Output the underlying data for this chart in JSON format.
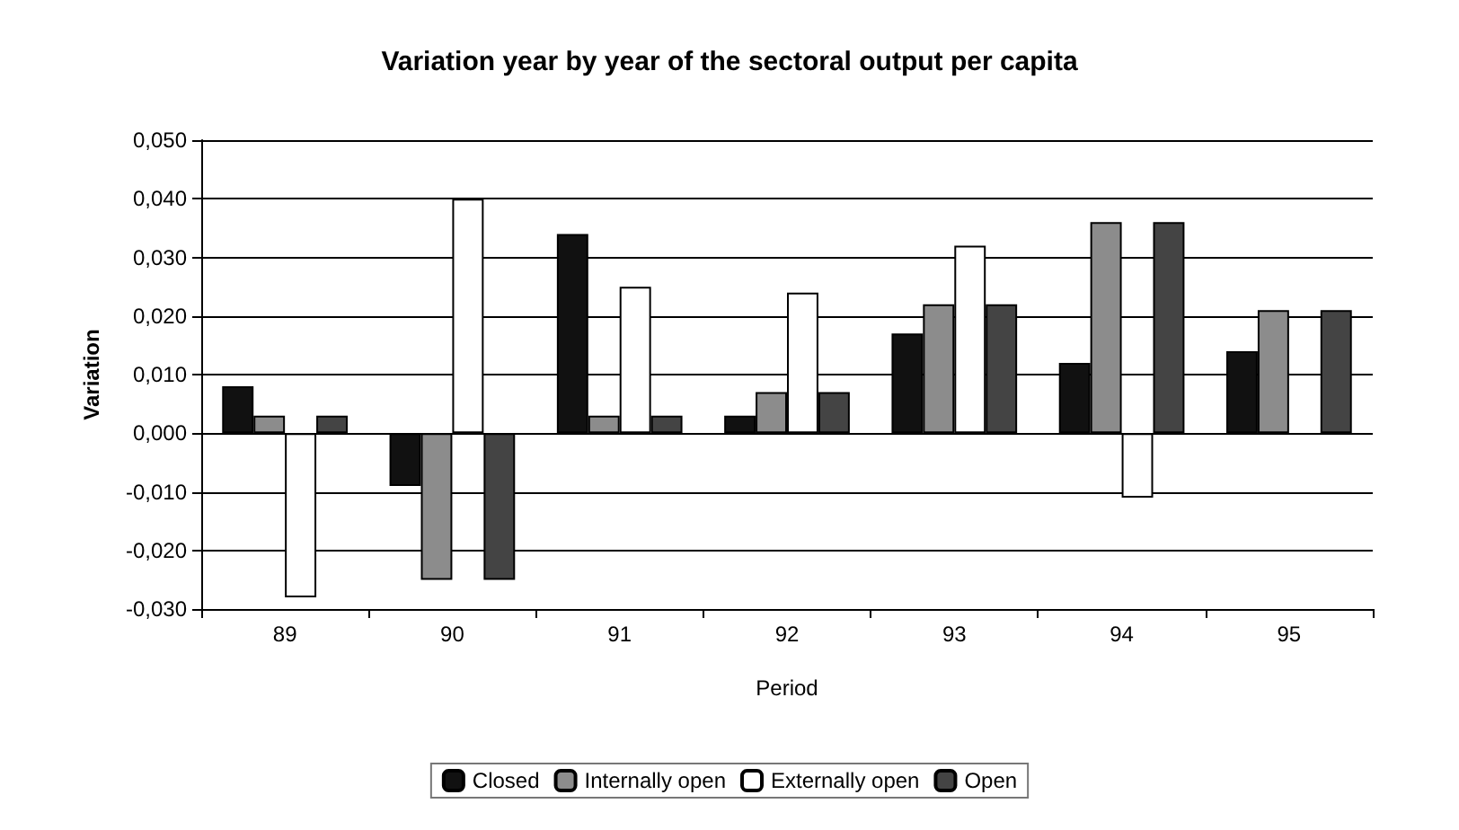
{
  "chart_data": {
    "type": "bar",
    "title": "Variation year by year of the sectoral output per capita",
    "xlabel": "Period",
    "ylabel": "Variation",
    "categories": [
      "89",
      "90",
      "91",
      "92",
      "93",
      "94",
      "95"
    ],
    "series": [
      {
        "name": "Closed",
        "color": "#111111",
        "values": [
          0.008,
          -0.009,
          0.034,
          0.003,
          0.017,
          0.012,
          0.014
        ]
      },
      {
        "name": "Internally open",
        "color": "#8c8c8c",
        "values": [
          0.003,
          -0.025,
          0.003,
          0.007,
          0.022,
          0.036,
          0.021
        ]
      },
      {
        "name": "Externally open",
        "color": "#ffffff",
        "values": [
          -0.028,
          0.04,
          0.025,
          0.024,
          0.032,
          -0.011,
          null
        ]
      },
      {
        "name": "Open",
        "color": "#444444",
        "values": [
          0.003,
          -0.025,
          0.003,
          0.007,
          0.022,
          0.036,
          0.021
        ]
      }
    ],
    "ylim": [
      -0.03,
      0.05
    ],
    "yticks": [
      {
        "value": -0.03,
        "label": "-0,030"
      },
      {
        "value": -0.02,
        "label": "-0,020"
      },
      {
        "value": -0.01,
        "label": "-0,010"
      },
      {
        "value": 0,
        "label": "0,000"
      },
      {
        "value": 0.01,
        "label": "0,010"
      },
      {
        "value": 0.02,
        "label": "0,020"
      },
      {
        "value": 0.03,
        "label": "0,030"
      },
      {
        "value": 0.04,
        "label": "0,040"
      },
      {
        "value": 0.05,
        "label": "0,050"
      }
    ],
    "grid": "y",
    "legend": "bottom"
  }
}
